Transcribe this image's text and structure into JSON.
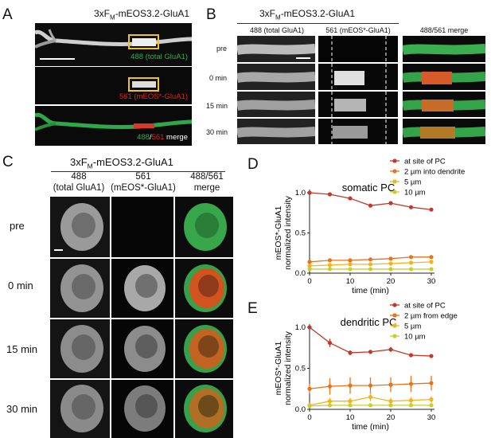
{
  "panel_labels": {
    "a": "A",
    "b": "B",
    "c": "C",
    "d": "D",
    "e": "E"
  },
  "construct": {
    "prefix": "3xF",
    "sub": "M",
    "suffix": "-mEOS3.2-GluA1"
  },
  "panelA": {
    "label_488": "488 (total GluA1)",
    "label_561": "561 (mEOS*-GluA1)",
    "merge_488": "488",
    "merge_slash": "/",
    "merge_561": "561",
    "merge_word": " merge"
  },
  "panelB": {
    "col_488": "488 (total GluA1)",
    "col_561": "561 (mEOS*-GluA1)",
    "col_merge": "488/561 merge",
    "rows": [
      "pre",
      "0 min",
      "15 min",
      "30 min"
    ]
  },
  "panelC": {
    "col_488_l1": "488",
    "col_488_l2": "(total GluA1)",
    "col_561_l1": "561",
    "col_561_l2": "(mEOS*-GluA1)",
    "col_merge_l1": "488/561",
    "col_merge_l2": "merge",
    "rows": [
      "pre",
      "0 min",
      "15 min",
      "30 min"
    ]
  },
  "colors": {
    "red": "#c0392b",
    "orange": "#e8731c",
    "yellow_orange": "#f2b418",
    "yellow_green": "#c8cf2c",
    "green": "#22b24c",
    "magenta_red": "#e02020"
  },
  "chart_data": [
    {
      "type": "line",
      "title": "somatic PC",
      "xlabel": "time (min)",
      "ylabel_lines": [
        "mEOS*-GluA1",
        "normalized intensity"
      ],
      "xlim": [
        0,
        30
      ],
      "ylim": [
        0,
        1.0
      ],
      "xticks": [
        "0",
        "10",
        "20",
        "30"
      ],
      "yticks": [
        "0.0",
        "0.5",
        "1.0"
      ],
      "x": [
        0,
        5,
        10,
        15,
        20,
        25,
        30
      ],
      "series": [
        {
          "name": "at site of PC",
          "color": "#c0392b",
          "values": [
            1.0,
            0.98,
            0.93,
            0.84,
            0.87,
            0.82,
            0.79
          ],
          "err": [
            0.01,
            0.01,
            0.01,
            0.01,
            0.01,
            0.01,
            0.01
          ]
        },
        {
          "name": "2 µm into dendrite",
          "color": "#e8731c",
          "values": [
            0.14,
            0.16,
            0.16,
            0.17,
            0.18,
            0.2,
            0.2
          ],
          "err": [
            0.02,
            0.02,
            0.02,
            0.02,
            0.02,
            0.02,
            0.02
          ]
        },
        {
          "name": "5 µm",
          "color": "#f2b418",
          "values": [
            0.09,
            0.1,
            0.11,
            0.11,
            0.12,
            0.13,
            0.14
          ],
          "err": [
            0.01,
            0.01,
            0.01,
            0.01,
            0.01,
            0.01,
            0.01
          ]
        },
        {
          "name": "10 µm",
          "color": "#c8cf2c",
          "values": [
            0.05,
            0.05,
            0.05,
            0.05,
            0.05,
            0.05,
            0.05
          ],
          "err": [
            0.01,
            0.01,
            0.01,
            0.01,
            0.01,
            0.01,
            0.01
          ]
        }
      ],
      "legend": "top-right",
      "grid": false
    },
    {
      "type": "line",
      "title": "dendritic PC",
      "xlabel": "time (min)",
      "ylabel_lines": [
        "mEOS*-GluA1",
        "normalized intensity"
      ],
      "xlim": [
        0,
        30
      ],
      "ylim": [
        0,
        1.0
      ],
      "xticks": [
        "0",
        "10",
        "20",
        "30"
      ],
      "yticks": [
        "0.0",
        "0.5",
        "1.0"
      ],
      "x": [
        0,
        5,
        10,
        15,
        20,
        25,
        30
      ],
      "series": [
        {
          "name": "at site of PC",
          "color": "#c0392b",
          "values": [
            1.0,
            0.81,
            0.69,
            0.7,
            0.73,
            0.66,
            0.65
          ],
          "err": [
            0.01,
            0.05,
            0.03,
            0.02,
            0.03,
            0.02,
            0.02
          ]
        },
        {
          "name": "2 µm from edge",
          "color": "#e8731c",
          "values": [
            0.25,
            0.28,
            0.29,
            0.29,
            0.3,
            0.31,
            0.32
          ],
          "err": [
            0.06,
            0.1,
            0.1,
            0.1,
            0.09,
            0.1,
            0.09
          ]
        },
        {
          "name": "5 µm",
          "color": "#f2b418",
          "values": [
            0.05,
            0.1,
            0.1,
            0.15,
            0.1,
            0.11,
            0.12
          ],
          "err": [
            0.03,
            0.04,
            0.04,
            0.05,
            0.04,
            0.04,
            0.04
          ]
        },
        {
          "name": "10 µm",
          "color": "#c8cf2c",
          "values": [
            0.04,
            0.05,
            0.05,
            0.05,
            0.05,
            0.05,
            0.05
          ],
          "err": [
            0.01,
            0.01,
            0.01,
            0.01,
            0.01,
            0.01,
            0.01
          ]
        }
      ],
      "legend": "top-right",
      "grid": false
    }
  ]
}
